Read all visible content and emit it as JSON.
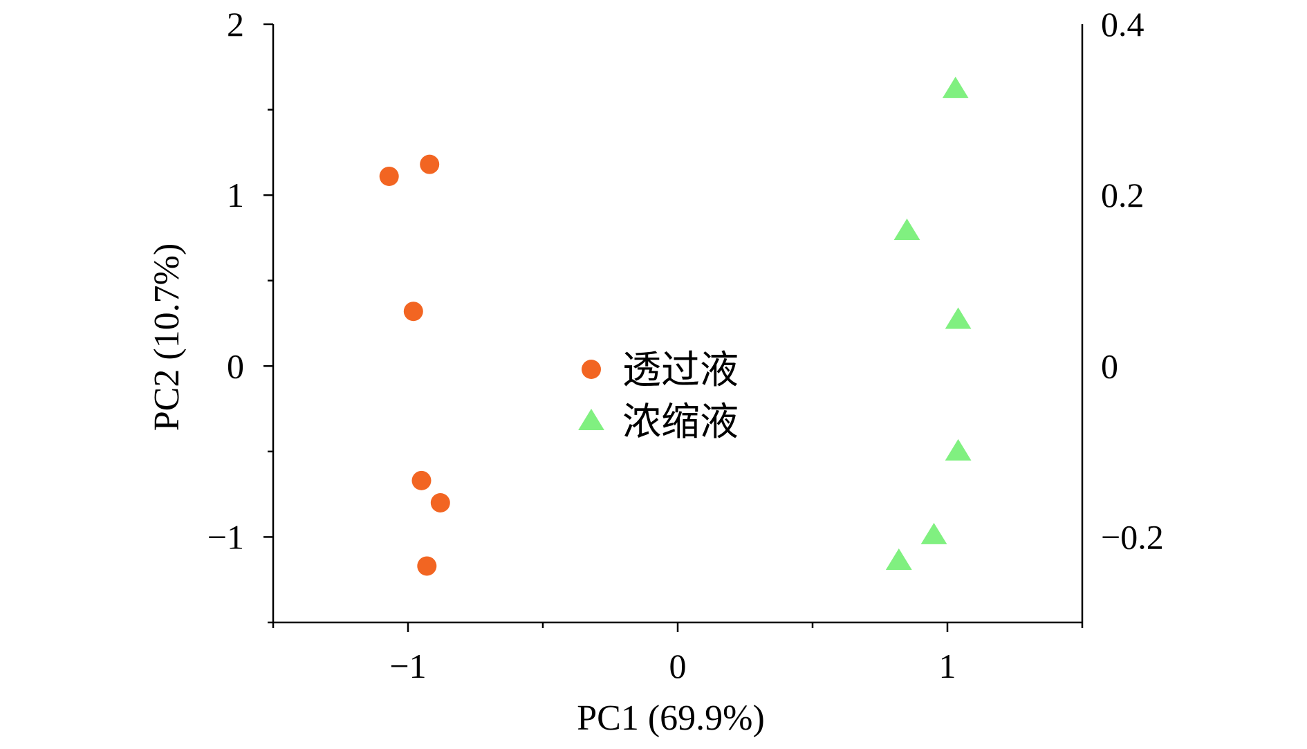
{
  "chart_data": {
    "type": "scatter",
    "title": "",
    "xlabel": "PC1 (69.9%)",
    "ylabel": "PC2 (10.7%)",
    "xlim": [
      -1.5,
      1.5
    ],
    "ylim": [
      -1.5,
      2
    ],
    "y2lim": [
      -0.3,
      0.4
    ],
    "x_ticks": [
      {
        "value": -1,
        "label": "−1"
      },
      {
        "value": 0,
        "label": "0"
      },
      {
        "value": 1,
        "label": "1"
      }
    ],
    "y_ticks": [
      {
        "value": -1,
        "label": "−1"
      },
      {
        "value": 0,
        "label": "0"
      },
      {
        "value": 1,
        "label": "1"
      },
      {
        "value": 2,
        "label": "2"
      }
    ],
    "y2_ticks": [
      {
        "value": -0.2,
        "label": "−0.2"
      },
      {
        "value": 0,
        "label": "0"
      },
      {
        "value": 0.2,
        "label": "0.2"
      },
      {
        "value": 0.4,
        "label": "0.4"
      }
    ],
    "grid": false,
    "legend_position": "center",
    "series": [
      {
        "name": "透过液",
        "marker": "circle",
        "color": "#f26522",
        "points": [
          {
            "x": -1.07,
            "y": 1.11
          },
          {
            "x": -0.92,
            "y": 1.18
          },
          {
            "x": -0.98,
            "y": 0.32
          },
          {
            "x": -0.95,
            "y": -0.67
          },
          {
            "x": -0.88,
            "y": -0.8
          },
          {
            "x": -0.93,
            "y": -1.17
          }
        ]
      },
      {
        "name": "浓缩液",
        "marker": "triangle",
        "color": "#80f080",
        "points": [
          {
            "x": 1.03,
            "y": 1.62
          },
          {
            "x": 0.85,
            "y": 0.79
          },
          {
            "x": 1.04,
            "y": 0.27
          },
          {
            "x": 1.04,
            "y": -0.5
          },
          {
            "x": 0.95,
            "y": -0.99
          },
          {
            "x": 0.82,
            "y": -1.14
          }
        ]
      }
    ]
  }
}
